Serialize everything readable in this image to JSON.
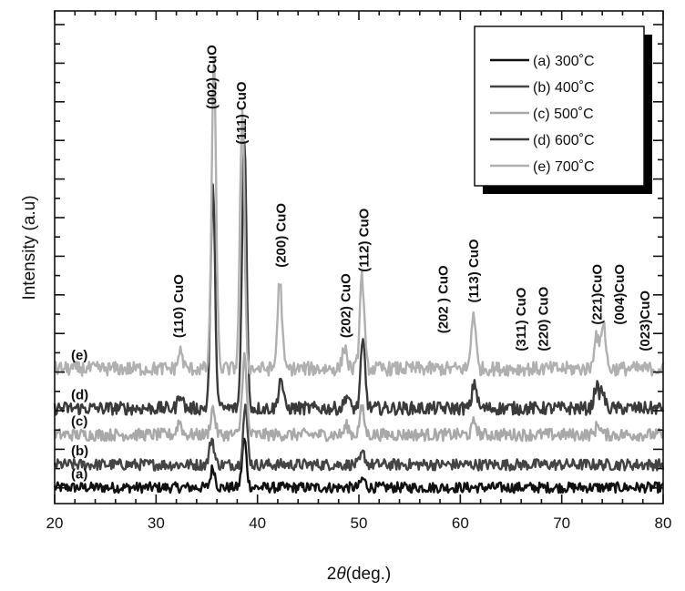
{
  "chart_data": {
    "type": "line",
    "xlabel_prefix": "2",
    "xlabel_symbol": "θ",
    "xlabel_suffix": "(deg.)",
    "ylabel": "Intensity (a.u)",
    "xlim": [
      20,
      80
    ],
    "xticks": [
      20,
      30,
      40,
      50,
      60,
      70,
      80
    ],
    "yticks_labeled": false,
    "legend_position": "top-right",
    "series": [
      {
        "name": "(a) 300˚C",
        "curve_label": "(a)",
        "color": "#111111",
        "baseline": 0.02,
        "noise": 0.012,
        "peaks": [
          [
            35.6,
            0.045
          ],
          [
            38.7,
            0.11
          ],
          [
            50.4,
            0.02
          ]
        ]
      },
      {
        "name": "(b) 400˚C",
        "curve_label": "(b)",
        "color": "#444444",
        "baseline": 0.072,
        "noise": 0.013,
        "peaks": [
          [
            35.5,
            0.06
          ],
          [
            38.8,
            0.13
          ],
          [
            50.4,
            0.025
          ]
        ]
      },
      {
        "name": "(c) 500˚C",
        "curve_label": "(c)",
        "color": "#a8a8a8",
        "baseline": 0.14,
        "noise": 0.014,
        "peaks": [
          [
            32.3,
            0.03
          ],
          [
            35.6,
            0.06
          ],
          [
            38.7,
            0.18
          ],
          [
            48.8,
            0.02
          ],
          [
            50.3,
            0.06
          ],
          [
            61.4,
            0.03
          ],
          [
            73.6,
            0.025
          ]
        ]
      },
      {
        "name": "(d) 600˚C",
        "curve_label": "(d)",
        "color": "#3a3a3a",
        "baseline": 0.2,
        "noise": 0.015,
        "peaks": [
          [
            32.4,
            0.035
          ],
          [
            35.6,
            0.5
          ],
          [
            38.7,
            0.62
          ],
          [
            42.3,
            0.07
          ],
          [
            48.8,
            0.03
          ],
          [
            50.4,
            0.15
          ],
          [
            61.4,
            0.06
          ],
          [
            73.4,
            0.05
          ],
          [
            74.0,
            0.04
          ]
        ]
      },
      {
        "name": "(e) 700˚C",
        "curve_label": "(e)",
        "color": "#b0b0b0",
        "baseline": 0.29,
        "noise": 0.016,
        "peaks": [
          [
            32.4,
            0.04
          ],
          [
            35.7,
            0.7
          ],
          [
            38.5,
            0.58
          ],
          [
            42.2,
            0.2
          ],
          [
            48.6,
            0.05
          ],
          [
            50.3,
            0.21
          ],
          [
            61.3,
            0.13
          ],
          [
            73.4,
            0.08
          ],
          [
            74.1,
            0.11
          ]
        ]
      }
    ],
    "peak_labels": [
      {
        "label": "(110) CuO",
        "x": 32.2
      },
      {
        "label": "(002) CuO",
        "x": 35.5
      },
      {
        "label": "(111) CuO",
        "x": 38.4
      },
      {
        "label": "(200) CuO",
        "x": 42.3
      },
      {
        "label": "(202) CuO",
        "x": 48.7
      },
      {
        "label": "(112) CuO",
        "x": 50.5
      },
      {
        "label": "(202 ) CuO",
        "x": 58.3
      },
      {
        "label": "(113) CuO",
        "x": 61.3
      },
      {
        "label": "(311) CuO",
        "x": 66.0
      },
      {
        "label": "(220) CuO",
        "x": 68.2
      },
      {
        "label": "(221)CuO",
        "x": 73.5
      },
      {
        "label": "(004)CuO",
        "x": 75.7
      },
      {
        "label": "(023)CuO",
        "x": 78.2
      }
    ]
  }
}
